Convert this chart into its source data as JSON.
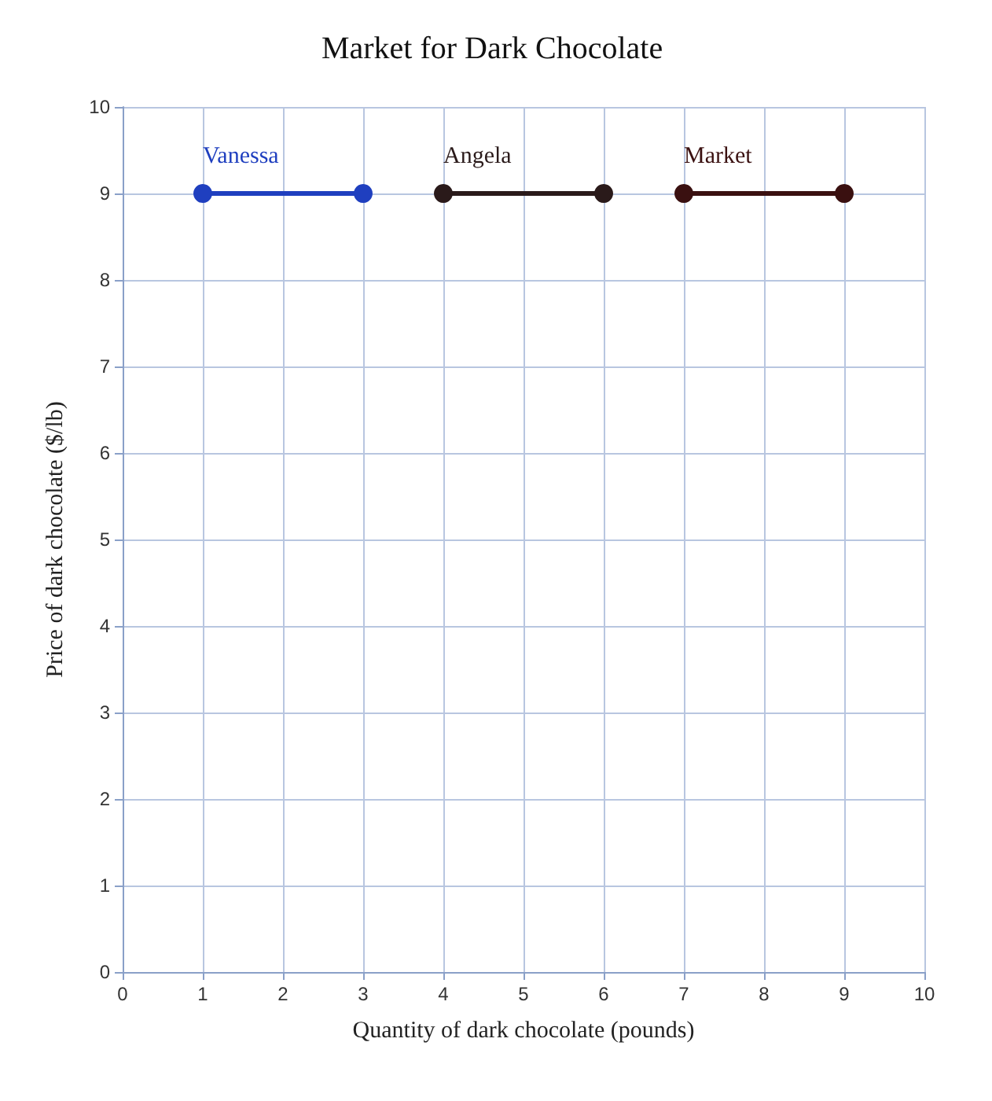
{
  "chart_data": {
    "type": "line",
    "title": "Market for Dark Chocolate",
    "xlabel": "Quantity of dark chocolate (pounds)",
    "ylabel": "Price of dark chocolate ($/lb)",
    "xlim": [
      0,
      10
    ],
    "xticks": [
      0,
      1,
      2,
      3,
      4,
      5,
      6,
      7,
      8,
      9,
      10
    ],
    "ylim": [
      0,
      10
    ],
    "yticks": [
      0,
      1,
      2,
      3,
      4,
      5,
      6,
      7,
      8,
      9,
      10
    ],
    "grid": true,
    "marker": "circle",
    "line_style": "solid",
    "legend": false,
    "series": [
      {
        "name": "Vanessa",
        "color": "#1f3fbf",
        "x": [
          1,
          3
        ],
        "values": [
          9,
          9
        ]
      },
      {
        "name": "Angela",
        "color": "#2a1a1a",
        "x": [
          4,
          6
        ],
        "values": [
          9,
          9
        ]
      },
      {
        "name": "Market",
        "color": "#3a1010",
        "x": [
          7,
          9
        ],
        "values": [
          9,
          9
        ]
      }
    ]
  }
}
